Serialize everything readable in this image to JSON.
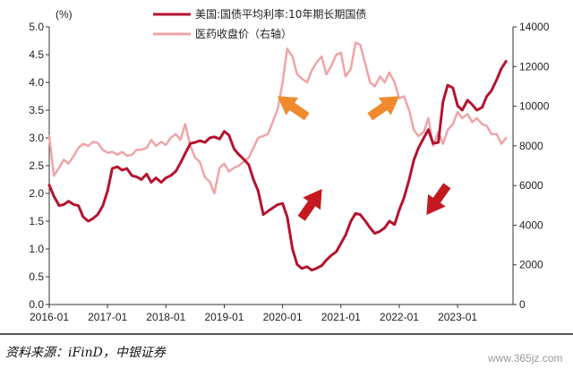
{
  "chart_data": {
    "type": "line",
    "x_tick_labels": [
      "2016-01",
      "2017-01",
      "2018-01",
      "2019-01",
      "2020-01",
      "2021-01",
      "2022-01",
      "2023-01"
    ],
    "y_left": {
      "unit_label": "(%)",
      "ticks": [
        "0.0",
        "0.5",
        "1.0",
        "1.5",
        "2.0",
        "2.5",
        "3.0",
        "3.5",
        "4.0",
        "4.5",
        "5.0"
      ],
      "range": [
        0,
        5
      ]
    },
    "y_right": {
      "ticks": [
        "0",
        "2000",
        "4000",
        "6000",
        "8000",
        "10000",
        "12000",
        "14000"
      ],
      "range": [
        0,
        14000
      ]
    },
    "series": [
      {
        "name": "美国:国债平均利率:10年期长期国债",
        "axis": "left",
        "color": "#b5132f",
        "t": [
          2016.0,
          2016.08,
          2016.17,
          2016.25,
          2016.33,
          2016.42,
          2016.5,
          2016.58,
          2016.67,
          2016.75,
          2016.83,
          2016.92,
          2017.0,
          2017.08,
          2017.17,
          2017.25,
          2017.33,
          2017.42,
          2017.5,
          2017.58,
          2017.67,
          2017.75,
          2017.83,
          2017.92,
          2018.0,
          2018.08,
          2018.17,
          2018.25,
          2018.33,
          2018.42,
          2018.5,
          2018.58,
          2018.67,
          2018.75,
          2018.83,
          2018.92,
          2019.0,
          2019.08,
          2019.17,
          2019.25,
          2019.33,
          2019.42,
          2019.5,
          2019.58,
          2019.67,
          2019.75,
          2019.83,
          2019.92,
          2020.0,
          2020.08,
          2020.17,
          2020.25,
          2020.33,
          2020.42,
          2020.5,
          2020.58,
          2020.67,
          2020.75,
          2020.83,
          2020.92,
          2021.0,
          2021.08,
          2021.17,
          2021.25,
          2021.33,
          2021.42,
          2021.5,
          2021.58,
          2021.67,
          2021.75,
          2021.83,
          2021.92,
          2022.0,
          2022.08,
          2022.17,
          2022.25,
          2022.33,
          2022.42,
          2022.5,
          2022.58,
          2022.67,
          2022.75,
          2022.83,
          2022.92,
          2023.0,
          2023.08,
          2023.17,
          2023.25,
          2023.33,
          2023.42,
          2023.5,
          2023.58,
          2023.67,
          2023.75,
          2023.83
        ],
        "values": [
          2.15,
          1.95,
          1.78,
          1.8,
          1.86,
          1.8,
          1.78,
          1.58,
          1.5,
          1.55,
          1.62,
          1.78,
          2.05,
          2.45,
          2.48,
          2.42,
          2.45,
          2.32,
          2.3,
          2.25,
          2.35,
          2.2,
          2.28,
          2.2,
          2.28,
          2.32,
          2.4,
          2.55,
          2.72,
          2.9,
          2.92,
          2.95,
          2.92,
          3.0,
          3.02,
          2.98,
          3.12,
          3.05,
          2.8,
          2.7,
          2.62,
          2.52,
          2.25,
          2.05,
          1.62,
          1.68,
          1.74,
          1.8,
          1.82,
          1.58,
          1.0,
          0.72,
          0.65,
          0.68,
          0.62,
          0.65,
          0.7,
          0.8,
          0.88,
          0.95,
          1.1,
          1.25,
          1.5,
          1.64,
          1.62,
          1.5,
          1.38,
          1.28,
          1.32,
          1.38,
          1.5,
          1.44,
          1.7,
          1.92,
          2.25,
          2.6,
          2.82,
          3.0,
          3.15,
          2.9,
          2.92,
          3.65,
          3.95,
          3.9,
          3.58,
          3.5,
          3.68,
          3.6,
          3.5,
          3.55,
          3.75,
          3.85,
          4.05,
          4.25,
          4.38
        ]
      },
      {
        "name": "医药收盘价（右轴）",
        "axis": "right",
        "color": "#f0a4a8",
        "t": [
          2016.0,
          2016.08,
          2016.17,
          2016.25,
          2016.33,
          2016.42,
          2016.5,
          2016.58,
          2016.67,
          2016.75,
          2016.83,
          2016.92,
          2017.0,
          2017.08,
          2017.17,
          2017.25,
          2017.33,
          2017.42,
          2017.5,
          2017.58,
          2017.67,
          2017.75,
          2017.83,
          2017.92,
          2018.0,
          2018.08,
          2018.17,
          2018.25,
          2018.33,
          2018.42,
          2018.5,
          2018.58,
          2018.67,
          2018.75,
          2018.83,
          2018.92,
          2019.0,
          2019.08,
          2019.17,
          2019.25,
          2019.33,
          2019.42,
          2019.5,
          2019.58,
          2019.67,
          2019.75,
          2019.83,
          2019.92,
          2020.0,
          2020.08,
          2020.17,
          2020.25,
          2020.33,
          2020.42,
          2020.5,
          2020.58,
          2020.67,
          2020.75,
          2020.83,
          2020.92,
          2021.0,
          2021.08,
          2021.17,
          2021.25,
          2021.33,
          2021.42,
          2021.5,
          2021.58,
          2021.67,
          2021.75,
          2021.83,
          2021.92,
          2022.0,
          2022.08,
          2022.17,
          2022.25,
          2022.33,
          2022.42,
          2022.5,
          2022.58,
          2022.67,
          2022.75,
          2022.83,
          2022.92,
          2023.0,
          2023.08,
          2023.17,
          2023.25,
          2023.33,
          2023.42,
          2023.5,
          2023.58,
          2023.67,
          2023.75,
          2023.83
        ],
        "values": [
          8500,
          6500,
          6900,
          7300,
          7100,
          7500,
          7900,
          8100,
          8000,
          8200,
          8150,
          7800,
          7650,
          7700,
          7550,
          7700,
          7500,
          7550,
          7800,
          7800,
          7900,
          8300,
          8000,
          8200,
          8050,
          8400,
          8600,
          8300,
          9100,
          8000,
          7400,
          7200,
          6400,
          6200,
          5600,
          6900,
          7100,
          6700,
          6900,
          7000,
          7200,
          7400,
          7900,
          8400,
          8500,
          8600,
          9200,
          9900,
          11200,
          12900,
          12500,
          11600,
          11400,
          11200,
          11800,
          12200,
          12500,
          11600,
          12000,
          12600,
          12700,
          11500,
          11900,
          13200,
          13100,
          12100,
          11200,
          11000,
          11500,
          11200,
          11700,
          11200,
          10400,
          10500,
          9800,
          8800,
          8500,
          8700,
          9400,
          8000,
          8700,
          8100,
          8800,
          9100,
          9700,
          9400,
          9600,
          9200,
          9400,
          9100,
          9000,
          8600,
          8600,
          8100,
          8400
        ]
      }
    ],
    "arrows": [
      {
        "color": "#f08a2c",
        "direction": "up"
      },
      {
        "color": "#f08a2c",
        "direction": "down"
      },
      {
        "color": "#c41920",
        "direction": "down"
      },
      {
        "color": "#c41920",
        "direction": "up"
      }
    ]
  },
  "legend": [
    {
      "label": "美国:国债平均利率:10年期长期国债"
    },
    {
      "label": "医药收盘价（右轴）"
    }
  ],
  "source_note": "资料来源：iFinD，中银证券",
  "watermark": "www.365jz.com"
}
